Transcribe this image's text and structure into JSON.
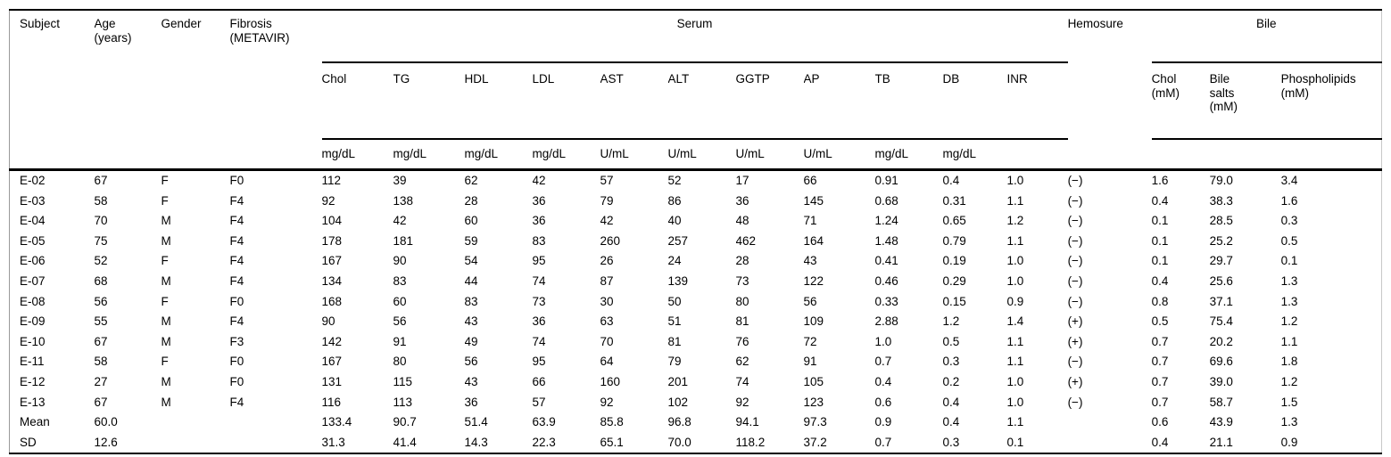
{
  "table": {
    "groups": {
      "serum": "Serum",
      "bile": "Bile"
    },
    "headers": {
      "subject": "Subject",
      "age": "Age\n(years)",
      "gender": "Gender",
      "fibrosis": "Fibrosis\n(METAVIR)",
      "hemosure": "Hemosure"
    },
    "serum_columns": [
      {
        "id": "chol",
        "label": "Chol",
        "unit": "mg/dL"
      },
      {
        "id": "tg",
        "label": "TG",
        "unit": "mg/dL"
      },
      {
        "id": "hdl",
        "label": "HDL",
        "unit": "mg/dL"
      },
      {
        "id": "ldl",
        "label": "LDL",
        "unit": "mg/dL"
      },
      {
        "id": "ast",
        "label": "AST",
        "unit": "U/mL"
      },
      {
        "id": "alt",
        "label": "ALT",
        "unit": "U/mL"
      },
      {
        "id": "ggtp",
        "label": "GGTP",
        "unit": "U/mL"
      },
      {
        "id": "ap",
        "label": "AP",
        "unit": "U/mL"
      },
      {
        "id": "tb",
        "label": "TB",
        "unit": "mg/dL"
      },
      {
        "id": "db",
        "label": "DB",
        "unit": "mg/dL"
      },
      {
        "id": "inr",
        "label": "INR",
        "unit": ""
      }
    ],
    "bile_columns": [
      {
        "id": "bile-chol",
        "label": "Chol\n(mM)"
      },
      {
        "id": "bile-salts",
        "label": "Bile\nsalts\n(mM)"
      },
      {
        "id": "phospholipids",
        "label": "Phospholipids\n(mM)"
      }
    ],
    "rows": [
      {
        "subject": "E-02",
        "age": "67",
        "gender": "F",
        "fibrosis": "F0",
        "serum": [
          "112",
          "39",
          "62",
          "42",
          "57",
          "52",
          "17",
          "66",
          "0.91",
          "0.4",
          "1.0"
        ],
        "hemosure": "(−)",
        "bile": [
          "1.6",
          "79.0",
          "3.4"
        ]
      },
      {
        "subject": "E-03",
        "age": "58",
        "gender": "F",
        "fibrosis": "F4",
        "serum": [
          "92",
          "138",
          "28",
          "36",
          "79",
          "86",
          "36",
          "145",
          "0.68",
          "0.31",
          "1.1"
        ],
        "hemosure": "(−)",
        "bile": [
          "0.4",
          "38.3",
          "1.6"
        ]
      },
      {
        "subject": "E-04",
        "age": "70",
        "gender": "M",
        "fibrosis": "F4",
        "serum": [
          "104",
          "42",
          "60",
          "36",
          "42",
          "40",
          "48",
          "71",
          "1.24",
          "0.65",
          "1.2"
        ],
        "hemosure": "(−)",
        "bile": [
          "0.1",
          "28.5",
          "0.3"
        ]
      },
      {
        "subject": "E-05",
        "age": "75",
        "gender": "M",
        "fibrosis": "F4",
        "serum": [
          "178",
          "181",
          "59",
          "83",
          "260",
          "257",
          "462",
          "164",
          "1.48",
          "0.79",
          "1.1"
        ],
        "hemosure": "(−)",
        "bile": [
          "0.1",
          "25.2",
          "0.5"
        ]
      },
      {
        "subject": "E-06",
        "age": "52",
        "gender": "F",
        "fibrosis": "F4",
        "serum": [
          "167",
          "90",
          "54",
          "95",
          "26",
          "24",
          "28",
          "43",
          "0.41",
          "0.19",
          "1.0"
        ],
        "hemosure": "(−)",
        "bile": [
          "0.1",
          "29.7",
          "0.1"
        ]
      },
      {
        "subject": "E-07",
        "age": "68",
        "gender": "M",
        "fibrosis": "F4",
        "serum": [
          "134",
          "83",
          "44",
          "74",
          "87",
          "139",
          "73",
          "122",
          "0.46",
          "0.29",
          "1.0"
        ],
        "hemosure": "(−)",
        "bile": [
          "0.4",
          "25.6",
          "1.3"
        ]
      },
      {
        "subject": "E-08",
        "age": "56",
        "gender": "F",
        "fibrosis": "F0",
        "serum": [
          "168",
          "60",
          "83",
          "73",
          "30",
          "50",
          "80",
          "56",
          "0.33",
          "0.15",
          "0.9"
        ],
        "hemosure": "(−)",
        "bile": [
          "0.8",
          "37.1",
          "1.3"
        ]
      },
      {
        "subject": "E-09",
        "age": "55",
        "gender": "M",
        "fibrosis": "F4",
        "serum": [
          "90",
          "56",
          "43",
          "36",
          "63",
          "51",
          "81",
          "109",
          "2.88",
          "1.2",
          "1.4"
        ],
        "hemosure": "(+)",
        "bile": [
          "0.5",
          "75.4",
          "1.2"
        ]
      },
      {
        "subject": "E-10",
        "age": "67",
        "gender": "M",
        "fibrosis": "F3",
        "serum": [
          "142",
          "91",
          "49",
          "74",
          "70",
          "81",
          "76",
          "72",
          "1.0",
          "0.5",
          "1.1"
        ],
        "hemosure": "(+)",
        "bile": [
          "0.7",
          "20.2",
          "1.1"
        ]
      },
      {
        "subject": "E-11",
        "age": "58",
        "gender": "F",
        "fibrosis": "F0",
        "serum": [
          "167",
          "80",
          "56",
          "95",
          "64",
          "79",
          "62",
          "91",
          "0.7",
          "0.3",
          "1.1"
        ],
        "hemosure": "(−)",
        "bile": [
          "0.7",
          "69.6",
          "1.8"
        ]
      },
      {
        "subject": "E-12",
        "age": "27",
        "gender": "M",
        "fibrosis": "F0",
        "serum": [
          "131",
          "115",
          "43",
          "66",
          "160",
          "201",
          "74",
          "105",
          "0.4",
          "0.2",
          "1.0"
        ],
        "hemosure": "(+)",
        "bile": [
          "0.7",
          "39.0",
          "1.2"
        ]
      },
      {
        "subject": "E-13",
        "age": "67",
        "gender": "M",
        "fibrosis": "F4",
        "serum": [
          "116",
          "113",
          "36",
          "57",
          "92",
          "102",
          "92",
          "123",
          "0.6",
          "0.4",
          "1.0"
        ],
        "hemosure": "(−)",
        "bile": [
          "0.7",
          "58.7",
          "1.5"
        ]
      },
      {
        "subject": "Mean",
        "age": "60.0",
        "gender": "",
        "fibrosis": "",
        "serum": [
          "133.4",
          "90.7",
          "51.4",
          "63.9",
          "85.8",
          "96.8",
          "94.1",
          "97.3",
          "0.9",
          "0.4",
          "1.1"
        ],
        "hemosure": "",
        "bile": [
          "0.6",
          "43.9",
          "1.3"
        ]
      },
      {
        "subject": "SD",
        "age": "12.6",
        "gender": "",
        "fibrosis": "",
        "serum": [
          "31.3",
          "41.4",
          "14.3",
          "22.3",
          "65.1",
          "70.0",
          "118.2",
          "37.2",
          "0.7",
          "0.3",
          "0.1"
        ],
        "hemosure": "",
        "bile": [
          "0.4",
          "21.1",
          "0.9"
        ]
      }
    ]
  }
}
